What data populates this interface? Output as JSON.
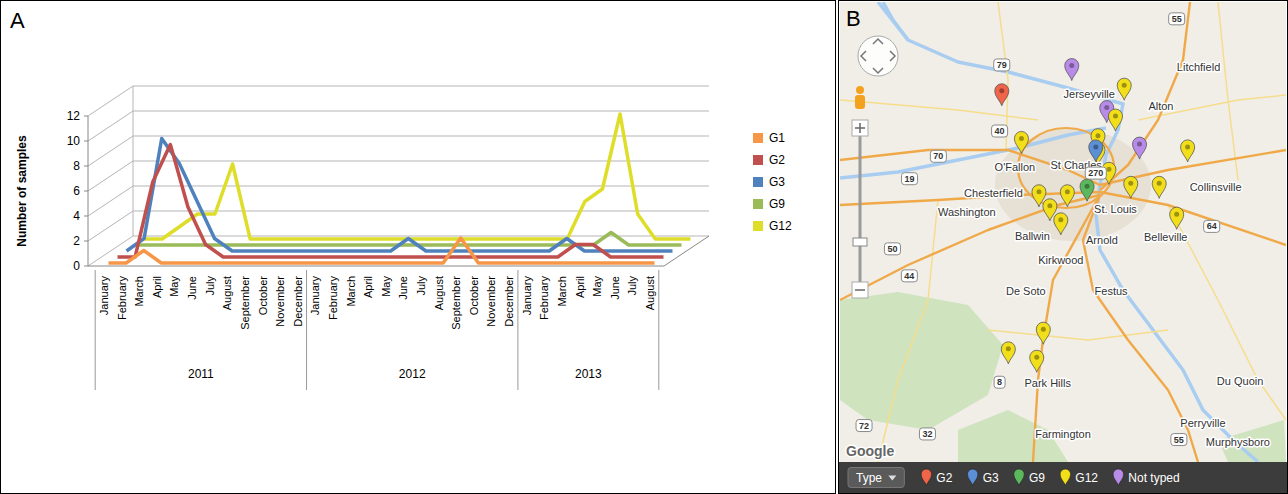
{
  "chart_data": {
    "type": "line",
    "panel_label": "A",
    "y_label": "Number of samples",
    "categories": [
      "January",
      "February",
      "March",
      "April",
      "May",
      "June",
      "July",
      "August",
      "September",
      "October",
      "November",
      "December",
      "January",
      "February",
      "March",
      "April",
      "May",
      "June",
      "July",
      "August",
      "September",
      "October",
      "November",
      "December",
      "January",
      "February",
      "March",
      "April",
      "May",
      "June",
      "July",
      "August"
    ],
    "x_groups": [
      {
        "label": "2011",
        "count": 12
      },
      {
        "label": "2012",
        "count": 12
      },
      {
        "label": "2013",
        "count": 8
      }
    ],
    "series": [
      {
        "name": "G1",
        "color": "#f79646",
        "values": [
          0,
          0,
          1,
          0,
          0,
          0,
          0,
          0,
          0,
          0,
          0,
          0,
          0,
          0,
          0,
          0,
          0,
          0,
          0,
          0,
          2,
          0,
          0,
          0,
          0,
          0,
          0,
          0,
          0,
          0,
          0,
          0
        ]
      },
      {
        "name": "G2",
        "color": "#c0504d",
        "values": [
          0,
          0,
          6,
          9,
          4,
          1,
          0,
          0,
          0,
          0,
          0,
          0,
          0,
          0,
          0,
          0,
          0,
          0,
          0,
          0,
          0,
          0,
          0,
          0,
          0,
          0,
          1,
          1,
          0,
          0,
          0,
          0
        ]
      },
      {
        "name": "G3",
        "color": "#4f81bd",
        "values": [
          0,
          1,
          9,
          7,
          4,
          1,
          0,
          0,
          0,
          0,
          0,
          0,
          0,
          0,
          0,
          0,
          1,
          0,
          0,
          0,
          0,
          0,
          0,
          0,
          0,
          1,
          0,
          0,
          0,
          0,
          0,
          0
        ]
      },
      {
        "name": "G9",
        "color": "#9bbb59",
        "values": [
          0,
          0,
          0,
          0,
          0,
          0,
          0,
          0,
          0,
          0,
          0,
          0,
          0,
          0,
          0,
          0,
          0,
          0,
          0,
          0,
          0,
          0,
          0,
          0,
          0,
          0,
          0,
          1,
          0,
          0,
          0,
          0
        ]
      },
      {
        "name": "G12",
        "color": "#dede2a",
        "values": [
          0,
          0,
          1,
          2,
          2,
          6,
          0,
          0,
          0,
          0,
          0,
          0,
          0,
          0,
          0,
          0,
          0,
          0,
          0,
          0,
          0,
          0,
          0,
          0,
          0,
          3,
          4,
          10,
          2,
          0,
          0,
          0
        ]
      }
    ],
    "ylim": [
      0,
      12
    ],
    "yticks": [
      0,
      2,
      4,
      6,
      8,
      10,
      12
    ],
    "grid": true,
    "legend": "right"
  },
  "map": {
    "panel_label": "B",
    "lon_range": [
      -91.36,
      -89.32
    ],
    "lat_range": [
      39.32,
      37.68
    ],
    "places": [
      {
        "name": "Jerseyville",
        "lon": -90.22,
        "lat": 39.04
      },
      {
        "name": "Litchfield",
        "lon": -89.72,
        "lat": 39.09
      },
      {
        "name": "Alton",
        "lon": -90.02,
        "lat": 38.95
      },
      {
        "name": "O'Fallon",
        "lon": -90.56,
        "lat": 38.73
      },
      {
        "name": "St Charles",
        "lon": -90.28,
        "lat": 38.74
      },
      {
        "name": "Chesterfield",
        "lon": -90.53,
        "lat": 38.64
      },
      {
        "name": "St. Louis",
        "lon": -90.1,
        "lat": 38.63
      },
      {
        "name": "Collinsville",
        "lon": -89.77,
        "lat": 38.66
      },
      {
        "name": "Washington",
        "lon": -90.78,
        "lat": 38.57
      },
      {
        "name": "Ballwin",
        "lon": -90.48,
        "lat": 38.57
      },
      {
        "name": "Belleville",
        "lon": -89.87,
        "lat": 38.53
      },
      {
        "name": "Kirkwood",
        "lon": -90.35,
        "lat": 38.53
      },
      {
        "name": "Arnold",
        "lon": -90.29,
        "lat": 38.47
      },
      {
        "name": "De Soto",
        "lon": -90.51,
        "lat": 38.29
      },
      {
        "name": "Festus",
        "lon": -90.12,
        "lat": 38.29
      },
      {
        "name": "Du Quoin",
        "lon": -89.53,
        "lat": 37.97
      },
      {
        "name": "Park Hills",
        "lon": -90.41,
        "lat": 37.96
      },
      {
        "name": "Farmington",
        "lon": -90.34,
        "lat": 37.78
      },
      {
        "name": "Perryville",
        "lon": -89.7,
        "lat": 37.82
      },
      {
        "name": "Murphysboro",
        "lon": -89.54,
        "lat": 37.75
      }
    ],
    "roads": [
      {
        "label": "55",
        "lon": -89.82,
        "lat": 39.26
      },
      {
        "label": "79",
        "lon": -90.62,
        "lat": 39.01
      },
      {
        "label": "40",
        "lon": -90.63,
        "lat": 38.86
      },
      {
        "label": "70",
        "lon": -90.91,
        "lat": 38.77
      },
      {
        "label": "19",
        "lon": -91.17,
        "lat": 38.69
      },
      {
        "label": "270",
        "lon": -90.19,
        "lat": 38.71
      },
      {
        "label": "64",
        "lon": -89.66,
        "lat": 38.52
      },
      {
        "label": "50",
        "lon": -91.12,
        "lat": 38.44
      },
      {
        "label": "44",
        "lon": -91.18,
        "lat": 38.39
      },
      {
        "label": "8",
        "lon": -90.63,
        "lat": 38.05
      },
      {
        "label": "72",
        "lon": -91.25,
        "lat": 37.81
      },
      {
        "label": "32",
        "lon": -90.96,
        "lat": 37.78
      },
      {
        "label": "55",
        "lon": -89.81,
        "lat": 37.76
      }
    ],
    "markers": [
      {
        "type": "Not typed",
        "lon": -90.3,
        "lat": 39.04
      },
      {
        "type": "Not typed",
        "lon": -90.14,
        "lat": 38.89
      },
      {
        "type": "Not typed",
        "lon": -89.99,
        "lat": 38.76
      },
      {
        "type": "G12",
        "lon": -90.06,
        "lat": 38.97
      },
      {
        "type": "G12",
        "lon": -90.1,
        "lat": 38.86
      },
      {
        "type": "G12",
        "lon": -90.18,
        "lat": 38.79
      },
      {
        "type": "G12",
        "lon": -90.18,
        "lat": 38.74
      },
      {
        "type": "G12",
        "lon": -90.13,
        "lat": 38.67
      },
      {
        "type": "G12",
        "lon": -90.53,
        "lat": 38.78
      },
      {
        "type": "G12",
        "lon": -89.77,
        "lat": 38.75
      },
      {
        "type": "G12",
        "lon": -90.03,
        "lat": 38.62
      },
      {
        "type": "G12",
        "lon": -90.45,
        "lat": 38.59
      },
      {
        "type": "G12",
        "lon": -90.32,
        "lat": 38.59
      },
      {
        "type": "G12",
        "lon": -90.4,
        "lat": 38.54
      },
      {
        "type": "G12",
        "lon": -90.35,
        "lat": 38.49
      },
      {
        "type": "G12",
        "lon": -89.9,
        "lat": 38.62
      },
      {
        "type": "G12",
        "lon": -89.82,
        "lat": 38.51
      },
      {
        "type": "G12",
        "lon": -90.43,
        "lat": 38.1
      },
      {
        "type": "G12",
        "lon": -90.59,
        "lat": 38.03
      },
      {
        "type": "G12",
        "lon": -90.46,
        "lat": 38.0
      },
      {
        "type": "G2",
        "lon": -90.62,
        "lat": 38.95
      },
      {
        "type": "G3",
        "lon": -90.19,
        "lat": 38.75
      },
      {
        "type": "G9",
        "lon": -90.23,
        "lat": 38.61
      }
    ],
    "legend": {
      "title": "Type",
      "items": [
        {
          "name": "G2",
          "color": "#f0654a"
        },
        {
          "name": "G3",
          "color": "#5b8fd6"
        },
        {
          "name": "G9",
          "color": "#5cb85c"
        },
        {
          "name": "G12",
          "color": "#f2df1a"
        },
        {
          "name": "Not typed",
          "color": "#b98be8"
        }
      ]
    },
    "attribution": "Google"
  }
}
